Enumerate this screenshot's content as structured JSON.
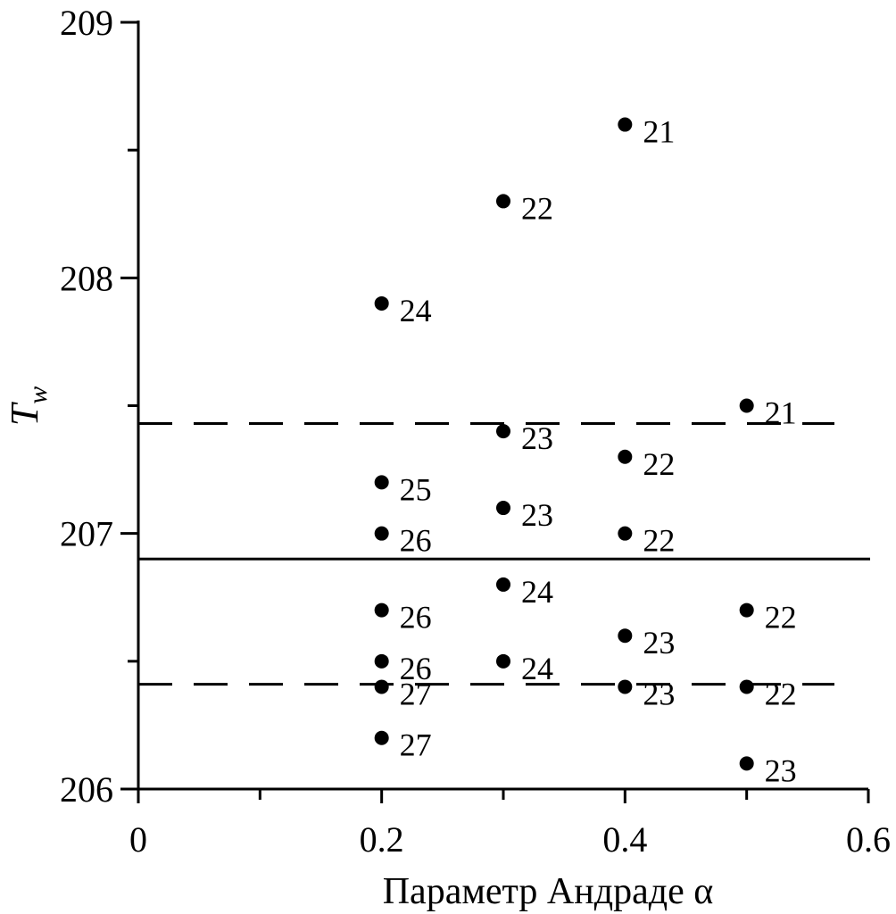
{
  "chart_data": {
    "type": "scatter",
    "xlabel": "Параметр Андраде α",
    "ylabel": "T",
    "ylabel_sub": "w",
    "xlim": [
      0,
      0.6
    ],
    "ylim": [
      206,
      209
    ],
    "xticks": [
      0,
      0.2,
      0.4,
      0.6
    ],
    "xminor": [
      0.1,
      0.3,
      0.5
    ],
    "yticks": [
      206,
      207,
      208,
      209
    ],
    "yminor": [
      206.5,
      207.5,
      208.5
    ],
    "color": "#000000",
    "hlines": [
      {
        "value": 207.43,
        "style": "dashed"
      },
      {
        "value": 206.9,
        "style": "solid"
      },
      {
        "value": 206.41,
        "style": "dashed"
      }
    ],
    "x": [
      0.2,
      0.2,
      0.2,
      0.2,
      0.2,
      0.2,
      0.2,
      0.3,
      0.3,
      0.3,
      0.3,
      0.3,
      0.4,
      0.4,
      0.4,
      0.4,
      0.4,
      0.5,
      0.5,
      0.5,
      0.5
    ],
    "values": [
      207.9,
      207.2,
      207.0,
      206.7,
      206.5,
      206.4,
      206.2,
      208.3,
      207.4,
      207.1,
      206.8,
      206.5,
      208.6,
      207.3,
      207.0,
      206.6,
      206.4,
      207.5,
      206.7,
      206.4,
      206.1
    ],
    "point_labels": [
      "24",
      "25",
      "26",
      "26",
      "26",
      "27",
      "27",
      "22",
      "23",
      "23",
      "24",
      "24",
      "21",
      "22",
      "22",
      "23",
      "23",
      "21",
      "22",
      "22",
      "23"
    ]
  }
}
